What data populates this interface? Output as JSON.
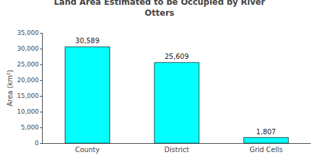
{
  "chart_data": {
    "type": "bar",
    "title": "Land Area Estimated to be Occupied by River\nOtters",
    "ylabel": "Area (km²)",
    "categories": [
      "County",
      "District",
      "Grid Cells"
    ],
    "values": [
      30589,
      25609,
      1807
    ],
    "value_labels": [
      "30,589",
      "25,609",
      "1,807"
    ],
    "data_labels": true,
    "color": "#00FFFF",
    "ylim": [
      0,
      35000
    ],
    "yticks": [
      0,
      {
        "value": 5000,
        "label": "5,000"
      },
      {
        "value": 10000,
        "label": "10,000"
      },
      {
        "value": 15000,
        "label": "15,000"
      },
      {
        "value": 20000,
        "label": "20,000"
      },
      {
        "value": 25000,
        "label": "25,000"
      },
      {
        "value": 30000,
        "label": "30,000"
      },
      {
        "value": 35000,
        "label": "35,000"
      }
    ],
    "grid": false
  }
}
